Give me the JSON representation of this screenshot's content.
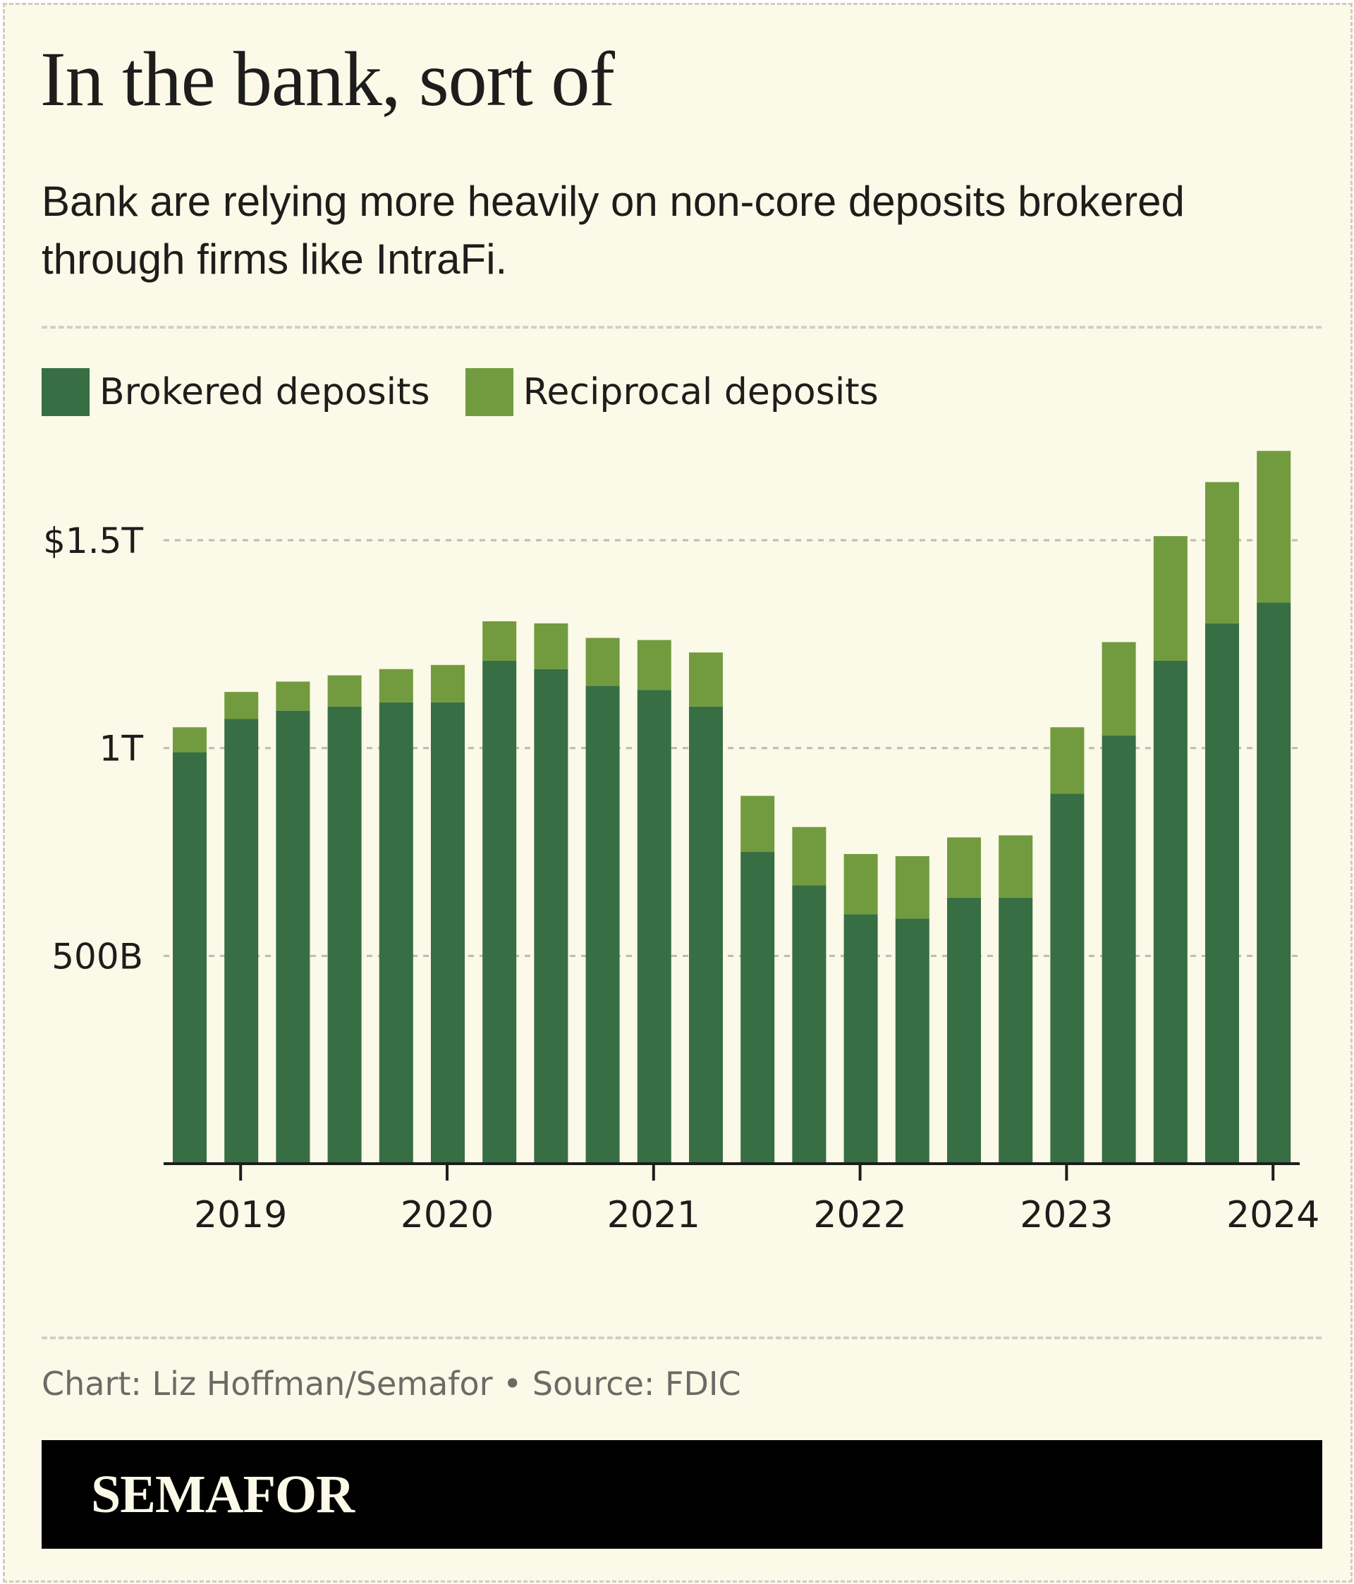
{
  "title": "In the bank, sort of",
  "subtitle": "Bank are relying more heavily on non-core deposits brokered through firms like IntraFi.",
  "credit": "Chart: Liz Hoffman/Semafor • Source: FDIC",
  "brand": "SEMAFOR",
  "colors": {
    "background": "#fbf9e8",
    "brokered": "#376e43",
    "reciprocal": "#729b3f",
    "text": "#1d1d1b",
    "footer": "#000000"
  },
  "chart_data": {
    "type": "bar",
    "stacked": true,
    "categories": [
      "2018 Q4",
      "2019 Q1",
      "2019 Q2",
      "2019 Q3",
      "2019 Q4",
      "2020 Q1",
      "2020 Q2",
      "2020 Q3",
      "2020 Q4",
      "2021 Q1",
      "2021 Q2",
      "2021 Q3",
      "2021 Q4",
      "2022 Q1",
      "2022 Q2",
      "2022 Q3",
      "2022 Q4",
      "2023 Q1",
      "2023 Q2",
      "2023 Q3",
      "2023 Q4",
      "2024 Q1"
    ],
    "series": [
      {
        "name": "Brokered deposits",
        "color": "#376e43",
        "values": [
          990,
          1070,
          1090,
          1100,
          1110,
          1110,
          1210,
          1190,
          1150,
          1140,
          1100,
          750,
          670,
          600,
          590,
          640,
          640,
          890,
          1030,
          1210,
          1300,
          1350
        ]
      },
      {
        "name": "Reciprocal deposits",
        "color": "#729b3f",
        "values": [
          60,
          65,
          70,
          75,
          80,
          90,
          95,
          110,
          115,
          120,
          130,
          135,
          140,
          145,
          150,
          145,
          150,
          160,
          225,
          300,
          340,
          365
        ]
      }
    ],
    "yunit": "billions USD",
    "ylim": [
      0,
      1750
    ],
    "yticks": [
      {
        "value": 500,
        "label": "500B"
      },
      {
        "value": 1000,
        "label": "1T"
      },
      {
        "value": 1500,
        "label": "$1.5T"
      }
    ],
    "xticks": [
      {
        "category_index": 1,
        "label": "2019"
      },
      {
        "category_index": 5,
        "label": "2020"
      },
      {
        "category_index": 9,
        "label": "2021"
      },
      {
        "category_index": 13,
        "label": "2022"
      },
      {
        "category_index": 17,
        "label": "2023"
      },
      {
        "category_index": 21,
        "label": "2024"
      }
    ],
    "grid": true,
    "legend_position": "top-left"
  }
}
